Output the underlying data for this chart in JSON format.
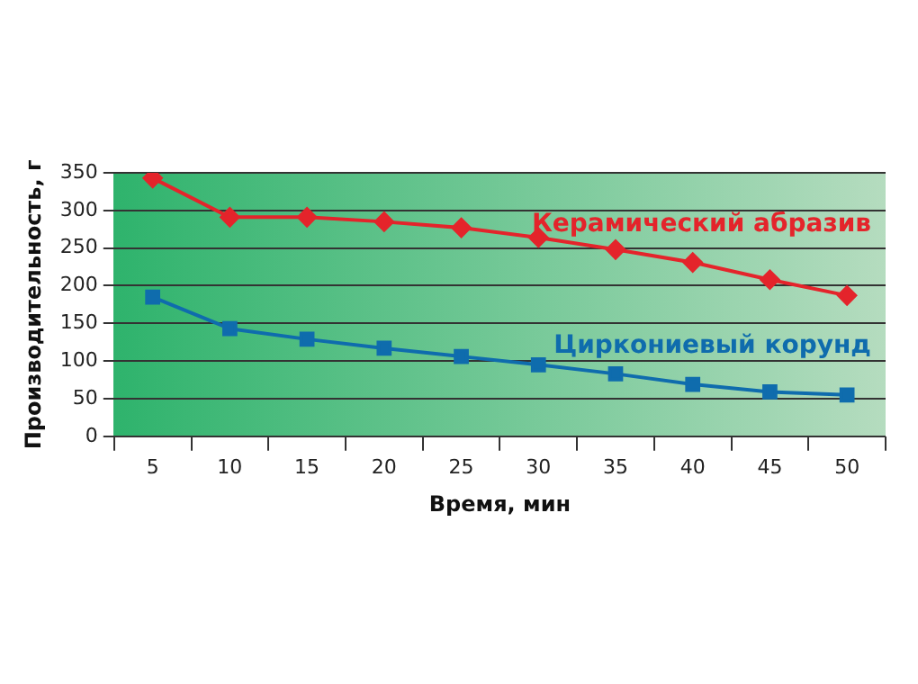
{
  "chart_data": {
    "type": "line",
    "xlabel": "Время, мин",
    "ylabel": "Производительность, г",
    "categories": [
      "5",
      "10",
      "15",
      "20",
      "25",
      "30",
      "35",
      "40",
      "45",
      "50"
    ],
    "series": [
      {
        "name": "Керамический абразив",
        "color": "#e4242b",
        "marker": "diamond",
        "values": [
          343,
          291,
          291,
          285,
          277,
          264,
          248,
          231,
          208,
          187
        ]
      },
      {
        "name": "Циркониевый корунд",
        "color": "#0f6cad",
        "marker": "square",
        "values": [
          185,
          143,
          129,
          117,
          106,
          95,
          83,
          69,
          59,
          55
        ]
      }
    ],
    "ylim": [
      0,
      350
    ],
    "yticks": [
      0,
      50,
      100,
      150,
      200,
      250,
      300,
      350
    ],
    "grid": "y",
    "legend": false,
    "line_style": "solid"
  }
}
